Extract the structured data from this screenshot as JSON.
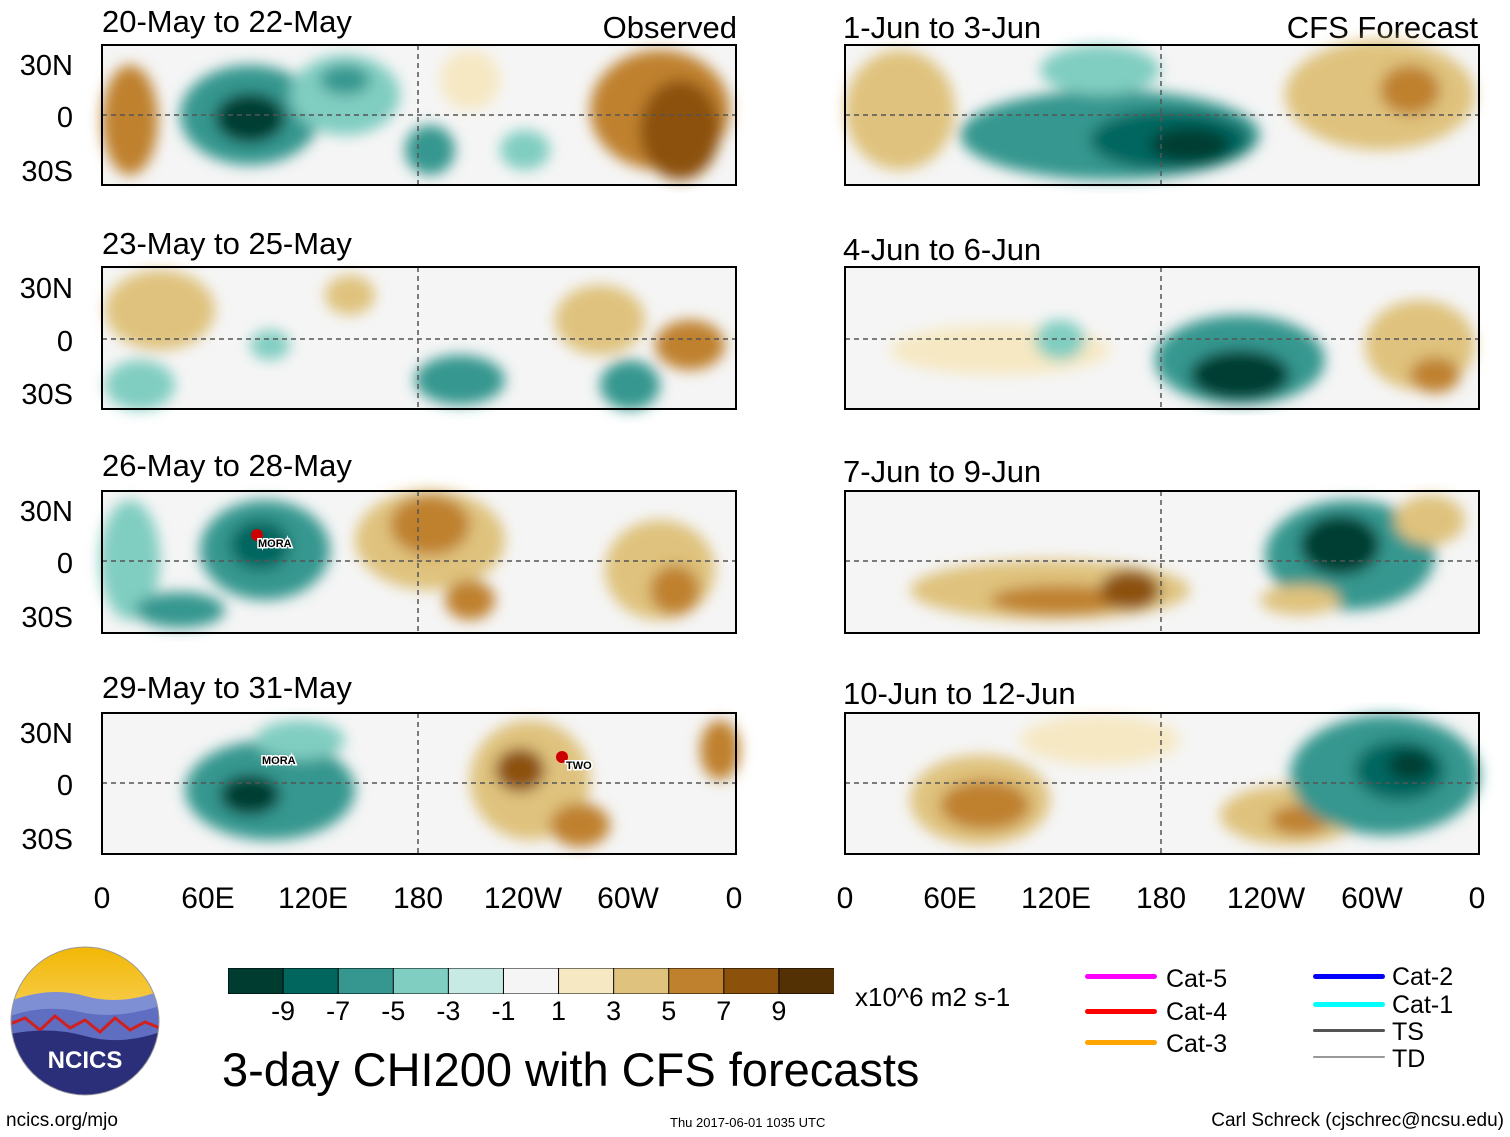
{
  "header": {
    "observed_label": "Observed",
    "forecast_label": "CFS Forecast"
  },
  "panels_left": [
    {
      "title": "20-May to 22-May"
    },
    {
      "title": "23-May to 25-May"
    },
    {
      "title": "26-May to 28-May",
      "storm": "MORA"
    },
    {
      "title": "29-May to 31-May",
      "storm": "MORA",
      "storm2": "TWO"
    }
  ],
  "panels_right": [
    {
      "title": "1-Jun to 3-Jun"
    },
    {
      "title": "4-Jun to 6-Jun"
    },
    {
      "title": "7-Jun to 9-Jun"
    },
    {
      "title": "10-Jun to 12-Jun"
    }
  ],
  "lat_labels": [
    "30N",
    "0",
    "30S"
  ],
  "lon_labels": [
    "0",
    "60E",
    "120E",
    "180",
    "120W",
    "60W",
    "0"
  ],
  "colorbar": {
    "colors": [
      "#003c30",
      "#01665e",
      "#35978f",
      "#80cdc1",
      "#c7eae5",
      "#f5f5f5",
      "#f6e8c3",
      "#dfc27d",
      "#bf812d",
      "#8c510a",
      "#543005"
    ],
    "labels": [
      "-9",
      "-7",
      "-5",
      "-3",
      "-1",
      "1",
      "3",
      "5",
      "7",
      "9"
    ],
    "units": "x10^6 m2 s-1"
  },
  "legend": {
    "items": [
      {
        "label": "Cat-5",
        "color": "#ff00ff"
      },
      {
        "label": "Cat-4",
        "color": "#ff0000"
      },
      {
        "label": "Cat-3",
        "color": "#ffa500"
      },
      {
        "label": "Cat-2",
        "color": "#0000ff"
      },
      {
        "label": "Cat-1",
        "color": "#00ffff"
      },
      {
        "label": "TS",
        "color": "#555555"
      },
      {
        "label": "TD",
        "color": "#999999"
      }
    ]
  },
  "title": "3-day CHI200 with CFS forecasts",
  "logo_text": "NCICS",
  "footer": {
    "left": "ncics.org/mjo",
    "middle": "Thu 2017-06-01 1035 UTC",
    "right": "Carl Schreck (cjschrec@ncsu.edu)"
  }
}
